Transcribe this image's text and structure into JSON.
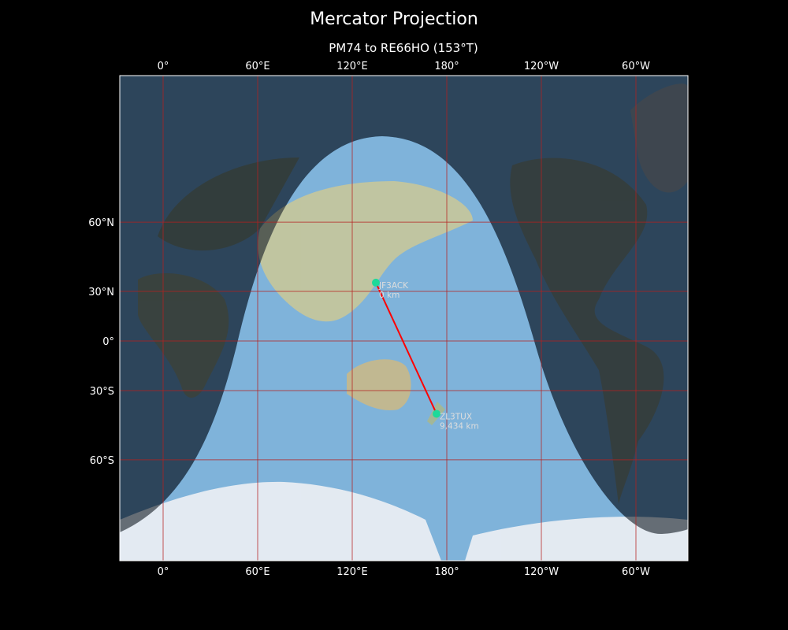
{
  "title": "Mercator Projection",
  "subtitle": "PM74 to RE66HO (153°T)",
  "map": {
    "projection": "mercator",
    "central_longitude": 153,
    "lon_range": [
      -27.5,
      333
    ],
    "lat_range": [
      -80,
      87
    ],
    "colors": {
      "ocean": "#4a7ba8",
      "day_ocean": "#7fb3da",
      "night_overlay": "#2a3138",
      "path": "#ff0000",
      "marker": "#1ed99a",
      "grid": "#b52020"
    },
    "x_ticks": [
      "0°",
      "60°E",
      "120°E",
      "180°",
      "120°W",
      "60°W"
    ],
    "x_tick_lons": [
      0,
      60,
      120,
      180,
      240,
      300
    ],
    "y_ticks": [
      "60°N",
      "30°N",
      "0°",
      "30°S",
      "60°S"
    ],
    "y_tick_lats": [
      60,
      30,
      0,
      -30,
      -60
    ],
    "points": [
      {
        "call": "JF3ACK",
        "distance": "0 km",
        "lat": 34.7,
        "lon": 135.0
      },
      {
        "call": "ZL3TUX",
        "distance": "9,434 km",
        "lat": -41.9,
        "lon": 173.5
      }
    ]
  }
}
